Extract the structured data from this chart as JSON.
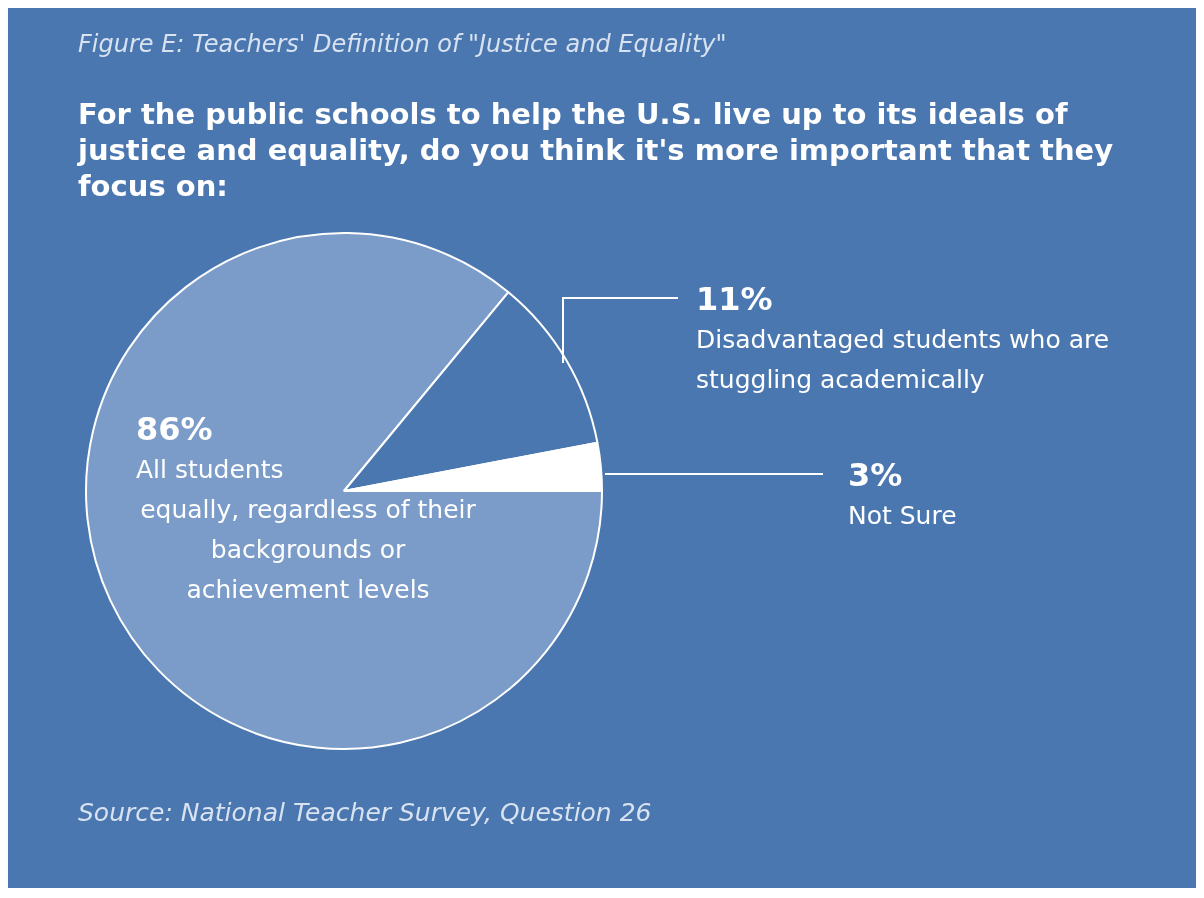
{
  "chart_data": {
    "type": "pie",
    "title": "Figure E: Teachers' Definition of \"Justice and Equality\"",
    "subtitle": "For the public schools to help the U.S. live up to its ideals of justice and equality, do you think it's more important that they focus on:",
    "categories": [
      "All students equally, regardless of their backgrounds or achievement levels",
      "Disadvantaged students who are stuggling academically",
      "Not Sure"
    ],
    "values": [
      86,
      11,
      3
    ],
    "value_labels": [
      "86%",
      "11%",
      "3%"
    ],
    "colors": [
      "#7b9cc8",
      "#4a77af",
      "#ffffff"
    ],
    "legend": false,
    "annotations": [
      "Source: National Teacher Survey, Question 26"
    ]
  }
}
